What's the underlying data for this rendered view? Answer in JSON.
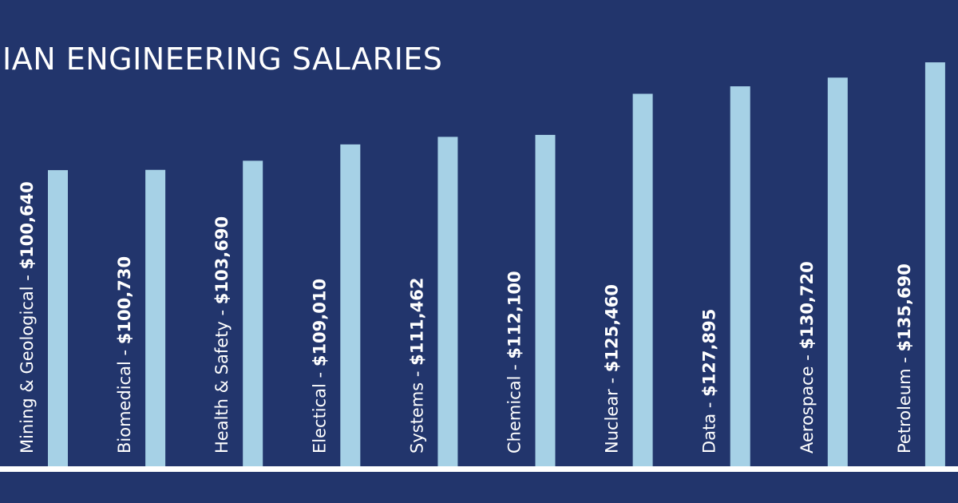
{
  "chart_data": {
    "type": "bar",
    "orientation": "vertical",
    "title": "IAN ENGINEERING SALARIES",
    "categories": [
      "Mining & Geological",
      "Biomedical",
      "Health & Safety",
      "Electical",
      "Systems",
      "Chemical",
      "Nuclear",
      "Data",
      "Aerospace",
      "Petroleum"
    ],
    "values": [
      100640,
      100730,
      103690,
      109010,
      111462,
      112100,
      125460,
      127895,
      130720,
      135690
    ],
    "value_labels": [
      "$100,640",
      "$100,730",
      "$103,690",
      "$109,010",
      "$111,462",
      "$112,100",
      "$125,460",
      "$127,895",
      "$130,720",
      "$135,690"
    ],
    "label_separator": " - ",
    "xlabel": "",
    "ylabel": "",
    "grid": false,
    "colors": {
      "background": "#22356c",
      "bar": "#a6d1e6",
      "text": "#ffffff",
      "baseline": "#ffffff"
    }
  }
}
